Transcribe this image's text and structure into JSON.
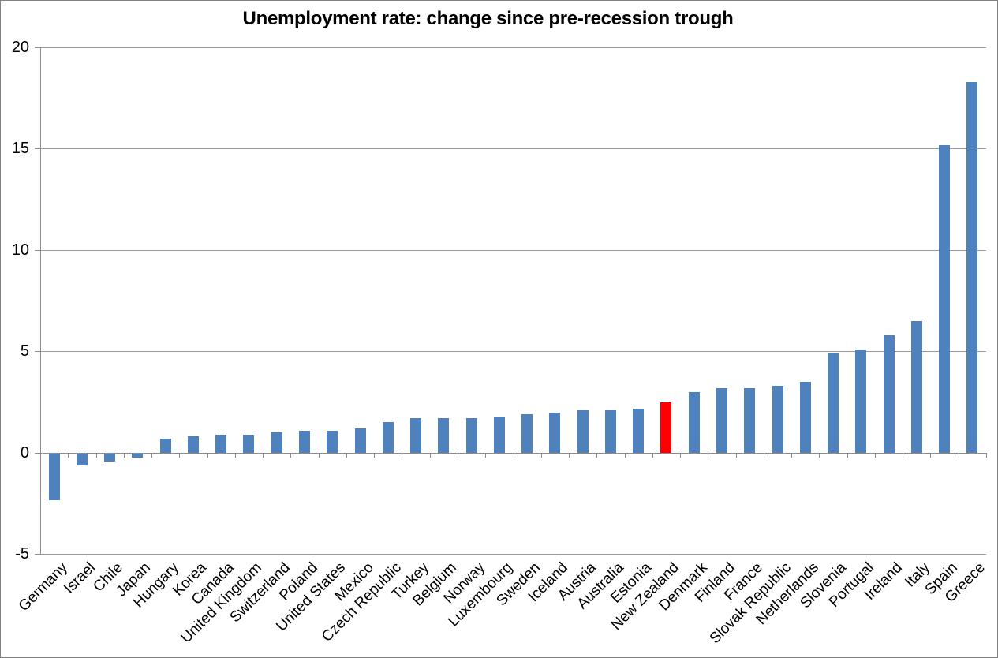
{
  "chart_data": {
    "type": "bar",
    "title": "Unemployment rate: change since pre-recession trough",
    "categories": [
      "Germany",
      "Israel",
      "Chile",
      "Japan",
      "Hungary",
      "Korea",
      "Canada",
      "United Kingdom",
      "Switzerland",
      "Poland",
      "United States",
      "Mexico",
      "Czech Republic",
      "Turkey",
      "Belgium",
      "Norway",
      "Luxembourg",
      "Sweden",
      "Iceland",
      "Austria",
      "Australia",
      "Estonia",
      "New Zealand",
      "Denmark",
      "Finland",
      "France",
      "Slovak Republic",
      "Netherlands",
      "Slovenia",
      "Portugal",
      "Ireland",
      "Italy",
      "Spain",
      "Greece"
    ],
    "values": [
      -2.3,
      -0.6,
      -0.4,
      -0.2,
      0.7,
      0.8,
      0.9,
      0.9,
      1.0,
      1.1,
      1.1,
      1.2,
      1.5,
      1.7,
      1.7,
      1.7,
      1.8,
      1.9,
      2.0,
      2.1,
      2.1,
      2.2,
      2.5,
      3.0,
      3.2,
      3.2,
      3.3,
      3.5,
      4.9,
      5.1,
      5.8,
      6.5,
      15.2,
      18.3
    ],
    "highlighted_category": "New Zealand",
    "xlabel": "",
    "ylabel": "",
    "ylim": [
      -5,
      20
    ],
    "yticks": [
      20,
      15,
      10,
      5,
      0,
      -5
    ],
    "legend": "none",
    "grid": "horizontal",
    "colors": {
      "bar": "#4f81bd",
      "highlight": "#ff0000",
      "gridline": "#9a9a9a",
      "axis": "#8c8c8c",
      "text": "#000000",
      "background": "#ffffff",
      "border": "#808080"
    }
  }
}
